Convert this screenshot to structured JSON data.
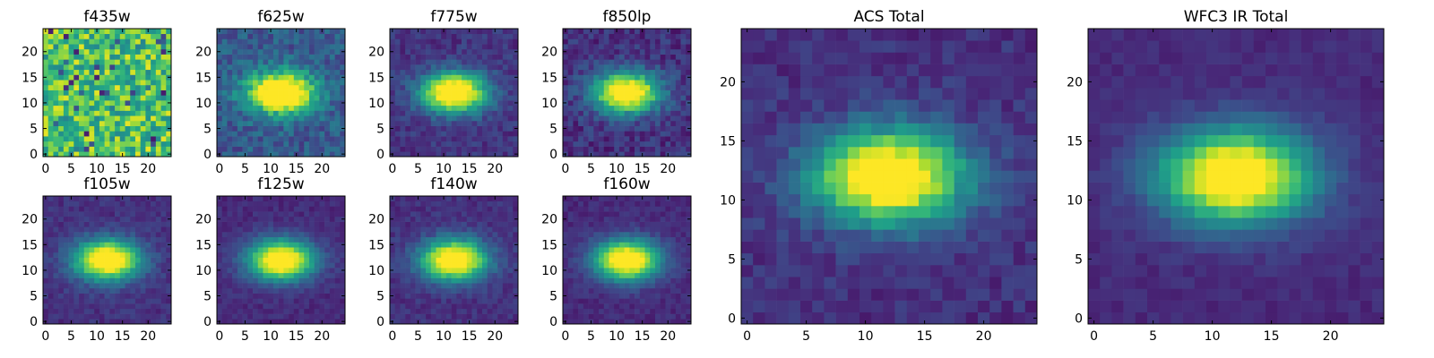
{
  "colormap": [
    "#440154",
    "#482878",
    "#3e4989",
    "#31688e",
    "#26828e",
    "#1f9e89",
    "#35b779",
    "#6ece58",
    "#b5de2b",
    "#fde725"
  ],
  "chart_data": [
    {
      "type": "heatmap",
      "title": "f435w",
      "xlim": [
        0,
        25
      ],
      "ylim": [
        0,
        25
      ],
      "xticks": [
        0,
        5,
        10,
        15,
        20
      ],
      "yticks": [
        0,
        5,
        10,
        15,
        20
      ],
      "grid": false,
      "bright_peak": 0.0,
      "background": 0.72,
      "noise": 0.25
    },
    {
      "type": "heatmap",
      "title": "f625w",
      "xlim": [
        0,
        25
      ],
      "ylim": [
        0,
        25
      ],
      "xticks": [
        0,
        5,
        10,
        15,
        20
      ],
      "yticks": [
        0,
        5,
        10,
        15,
        20
      ],
      "grid": false,
      "bright_peak": 1.0,
      "background": 0.28,
      "noise": 0.12
    },
    {
      "type": "heatmap",
      "title": "f775w",
      "xlim": [
        0,
        25
      ],
      "ylim": [
        0,
        25
      ],
      "xticks": [
        0,
        5,
        10,
        15,
        20
      ],
      "yticks": [
        0,
        5,
        10,
        15,
        20
      ],
      "grid": false,
      "bright_peak": 1.0,
      "background": 0.15,
      "noise": 0.08
    },
    {
      "type": "heatmap",
      "title": "f850lp",
      "xlim": [
        0,
        25
      ],
      "ylim": [
        0,
        25
      ],
      "xticks": [
        0,
        5,
        10,
        15,
        20
      ],
      "yticks": [
        0,
        5,
        10,
        15,
        20
      ],
      "grid": false,
      "bright_peak": 1.0,
      "background": 0.14,
      "noise": 0.1
    },
    {
      "type": "heatmap",
      "title": "f105w",
      "xlim": [
        0,
        25
      ],
      "ylim": [
        0,
        25
      ],
      "xticks": [
        0,
        5,
        10,
        15,
        20
      ],
      "yticks": [
        0,
        5,
        10,
        15,
        20
      ],
      "grid": false,
      "bright_peak": 1.0,
      "background": 0.14,
      "noise": 0.06
    },
    {
      "type": "heatmap",
      "title": "f125w",
      "xlim": [
        0,
        25
      ],
      "ylim": [
        0,
        25
      ],
      "xticks": [
        0,
        5,
        10,
        15,
        20
      ],
      "yticks": [
        0,
        5,
        10,
        15,
        20
      ],
      "grid": false,
      "bright_peak": 1.0,
      "background": 0.12,
      "noise": 0.05
    },
    {
      "type": "heatmap",
      "title": "f140w",
      "xlim": [
        0,
        25
      ],
      "ylim": [
        0,
        25
      ],
      "xticks": [
        0,
        5,
        10,
        15,
        20
      ],
      "yticks": [
        0,
        5,
        10,
        15,
        20
      ],
      "grid": false,
      "bright_peak": 1.0,
      "background": 0.14,
      "noise": 0.06
    },
    {
      "type": "heatmap",
      "title": "f160w",
      "xlim": [
        0,
        25
      ],
      "ylim": [
        0,
        25
      ],
      "xticks": [
        0,
        5,
        10,
        15,
        20
      ],
      "yticks": [
        0,
        5,
        10,
        15,
        20
      ],
      "grid": false,
      "bright_peak": 1.0,
      "background": 0.12,
      "noise": 0.05
    },
    {
      "type": "heatmap",
      "title": "ACS Total",
      "xlim": [
        0,
        25
      ],
      "ylim": [
        0,
        25
      ],
      "xticks": [
        0,
        5,
        10,
        15,
        20
      ],
      "yticks": [
        0,
        5,
        10,
        15,
        20
      ],
      "grid": false,
      "bright_peak": 1.0,
      "background": 0.14,
      "noise": 0.07
    },
    {
      "type": "heatmap",
      "title": "WFC3 IR Total",
      "xlim": [
        0,
        25
      ],
      "ylim": [
        0,
        25
      ],
      "xticks": [
        0,
        5,
        10,
        15,
        20
      ],
      "yticks": [
        0,
        5,
        10,
        15,
        20
      ],
      "grid": false,
      "bright_peak": 1.0,
      "background": 0.12,
      "noise": 0.04
    }
  ]
}
